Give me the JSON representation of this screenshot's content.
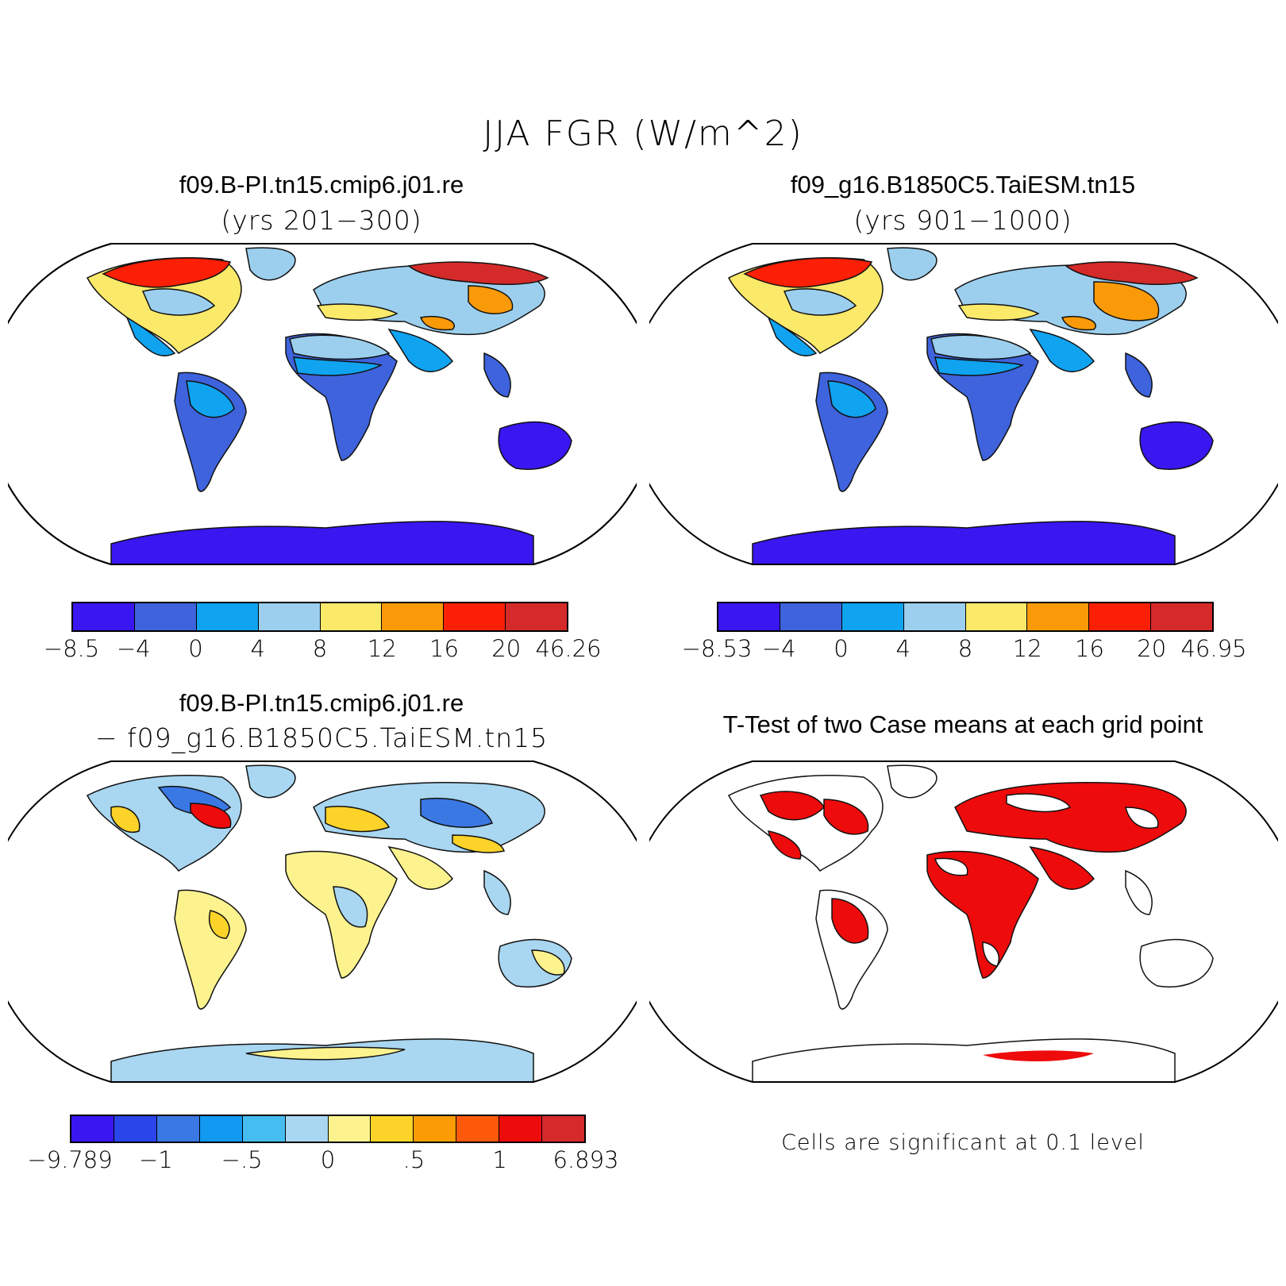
{
  "figure": {
    "title": "JJA FGR (W/m^2)"
  },
  "panels": [
    {
      "title": "f09.B-PI.tn15.cmip6.j01.re",
      "subtitle": "(yrs 201−300)"
    },
    {
      "title": "f09_g16.B1850C5.TaiESM.tn15",
      "subtitle": "(yrs 901−1000)"
    },
    {
      "title": "f09.B-PI.tn15.cmip6.j01.re",
      "subtitle": "− f09_g16.B1850C5.TaiESM.tn15"
    },
    {
      "title": "T-Test of two Case means at each grid point",
      "note": "Cells are significant at 0.1 level"
    }
  ],
  "colorbars": [
    {
      "labels": [
        "−8.5",
        "−4",
        "0",
        "4",
        "8",
        "12",
        "16",
        "20",
        "46.26"
      ],
      "colors": [
        "#3a16f0",
        "#3e63dc",
        "#10a3f0",
        "#9ccfee",
        "#fbe96a",
        "#fa9a08",
        "#fb1f05",
        "#d42a2a"
      ]
    },
    {
      "labels": [
        "−8.53",
        "−4",
        "0",
        "4",
        "8",
        "12",
        "16",
        "20",
        "46.95"
      ],
      "colors": [
        "#3a16f0",
        "#3e63dc",
        "#10a3f0",
        "#9ccfee",
        "#fbe96a",
        "#fa9a08",
        "#fb1f05",
        "#d42a2a"
      ]
    },
    {
      "labels": [
        "−9.789",
        "−1",
        "−.5",
        "0",
        ".5",
        "1",
        "6.893"
      ],
      "colors": [
        "#3a16f0",
        "#2a45ea",
        "#3a78e4",
        "#1299f2",
        "#45bdf0",
        "#a9d6f0",
        "#fdf38e",
        "#fcd329",
        "#fb9c05",
        "#fc5a0a",
        "#ee0b0b",
        "#d42a2a"
      ]
    }
  ]
}
